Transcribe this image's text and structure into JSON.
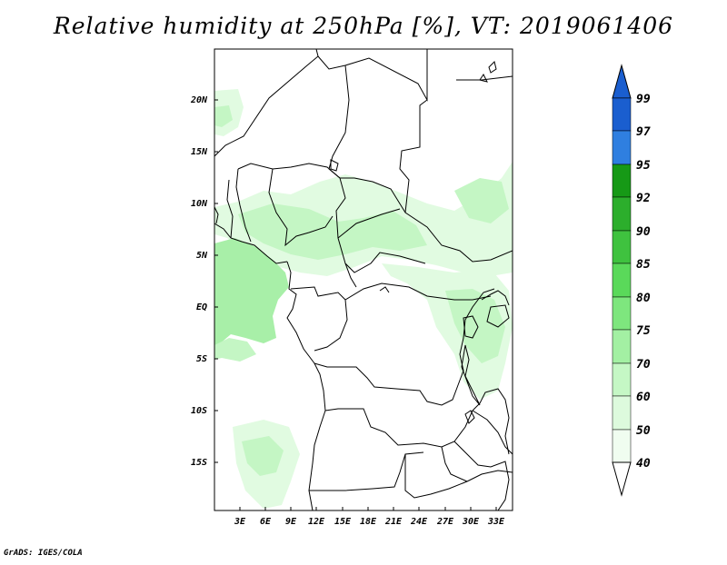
{
  "title": "Relative humidity at 250hPa [%], VT: 2019061406",
  "credit": "GrADS: IGES/COLA",
  "lat_labels": [
    "20N",
    "15N",
    "10N",
    "5N",
    "EQ",
    "5S",
    "10S",
    "15S"
  ],
  "lon_labels": [
    "3E",
    "6E",
    "9E",
    "12E",
    "15E",
    "18E",
    "21E",
    "24E",
    "27E",
    "30E",
    "33E"
  ],
  "colorbar": {
    "levels": [
      "99",
      "97",
      "95",
      "92",
      "90",
      "85",
      "80",
      "75",
      "70",
      "60",
      "50",
      "40"
    ],
    "colors": [
      "#1a5ecf",
      "#2f7fe0",
      "#4a9ff0",
      "#169916",
      "#2cae2c",
      "#3fc23f",
      "#5ad95a",
      "#7ee67e",
      "#a3f0a3",
      "#c5f7c5",
      "#ddfadd",
      "#f0fdf0"
    ]
  },
  "shading_colors": {
    "light": "#e1fbe1",
    "mid": "#c4f6c4",
    "strong": "#a8efa8"
  }
}
